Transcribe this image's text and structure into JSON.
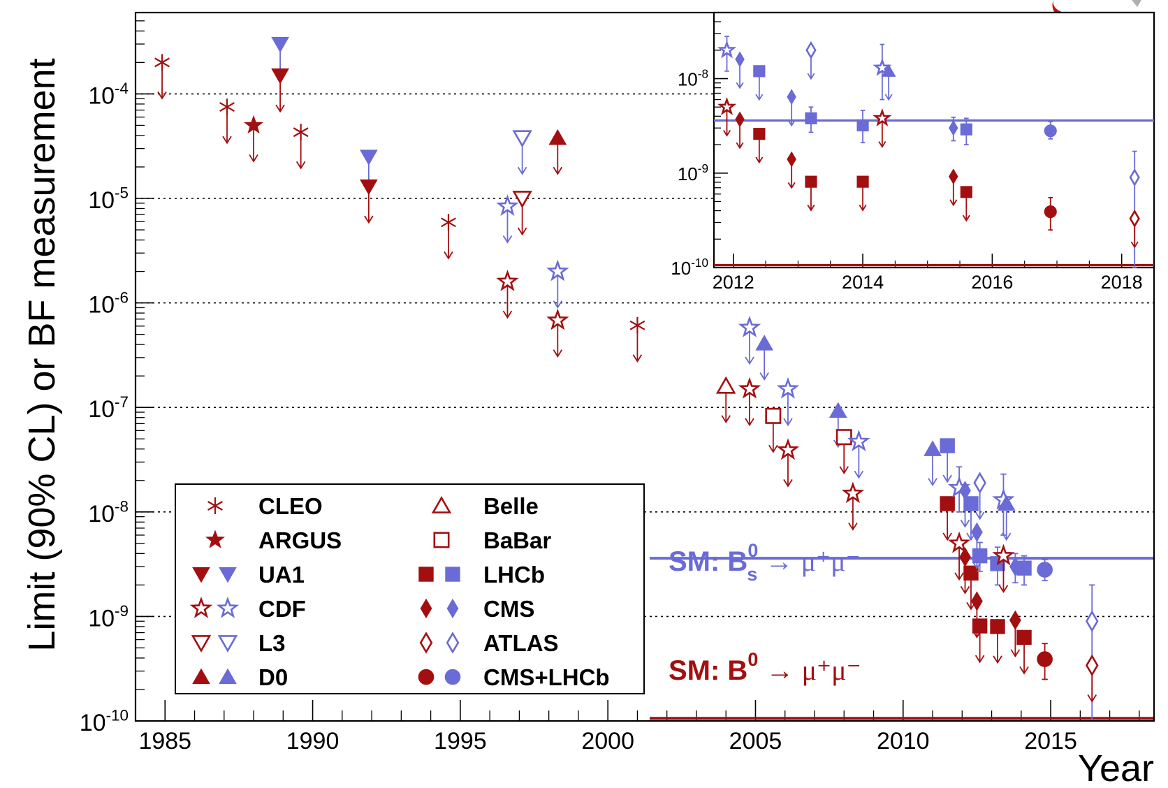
{
  "chart_data": {
    "type": "scatter",
    "ylabel": "Limit (90% CL) or BF measurement",
    "xlabel": "Year",
    "xlim": [
      1984,
      2018.5
    ],
    "ylim": [
      1e-10,
      0.0006
    ],
    "yscale": "log",
    "grid": "dotted horizontal at decades",
    "colors": {
      "B0": "#a30f10",
      "Bs": "#6a6bd6"
    },
    "x_ticks": [
      "1985",
      "1990",
      "1995",
      "2000",
      "2005",
      "2010",
      "2015"
    ],
    "y_ticks": [
      {
        "base": "10",
        "exp": "-10",
        "value": 1e-10
      },
      {
        "base": "10",
        "exp": "-9",
        "value": 1e-09
      },
      {
        "base": "10",
        "exp": "-8",
        "value": 1e-08
      },
      {
        "base": "10",
        "exp": "-7",
        "value": 1e-07
      },
      {
        "base": "10",
        "exp": "-6",
        "value": 1e-06
      },
      {
        "base": "10",
        "exp": "-5",
        "value": 1e-05
      },
      {
        "base": "10",
        "exp": "-4",
        "value": 0.0001
      }
    ],
    "sm_lines": [
      {
        "label_prefix": "SM: B",
        "sup": "0",
        "sub": "s",
        "arrow": "→",
        "decay": "μ⁺μ⁻",
        "value": 3.6e-09,
        "color": "#6a6bd6"
      },
      {
        "label_prefix": "SM: B",
        "sup": "0",
        "sub": "",
        "arrow": "→",
        "decay": "μ⁺μ⁻",
        "value": 1.06e-10,
        "color": "#a30f10"
      }
    ],
    "legend": [
      {
        "label": "CLEO",
        "marker": "asterisk",
        "colors": [
          "B0"
        ]
      },
      {
        "label": "ARGUS",
        "marker": "star-filled",
        "colors": [
          "B0"
        ]
      },
      {
        "label": "UA1",
        "marker": "tri-down-filled",
        "colors": [
          "B0",
          "Bs"
        ]
      },
      {
        "label": "CDF",
        "marker": "star-open",
        "colors": [
          "B0",
          "Bs"
        ]
      },
      {
        "label": "L3",
        "marker": "tri-down-open",
        "colors": [
          "B0",
          "Bs"
        ]
      },
      {
        "label": "D0",
        "marker": "tri-up-filled",
        "colors": [
          "B0",
          "Bs"
        ]
      },
      {
        "label": "Belle",
        "marker": "tri-up-open",
        "colors": [
          "B0"
        ]
      },
      {
        "label": "BaBar",
        "marker": "square-open",
        "colors": [
          "B0"
        ]
      },
      {
        "label": "LHCb",
        "marker": "square-filled",
        "colors": [
          "B0",
          "Bs"
        ]
      },
      {
        "label": "CMS",
        "marker": "diamond-filled",
        "colors": [
          "B0",
          "Bs"
        ]
      },
      {
        "label": "ATLAS",
        "marker": "diamond-open",
        "colors": [
          "B0",
          "Bs"
        ]
      },
      {
        "label": "CMS+LHCb",
        "marker": "circle-filled",
        "colors": [
          "B0",
          "Bs"
        ]
      }
    ],
    "points": [
      {
        "x": 1984.9,
        "y": 0.0002,
        "m": "asterisk",
        "c": "B0",
        "t": "limit"
      },
      {
        "x": 1987.1,
        "y": 7.5e-05,
        "m": "asterisk",
        "c": "B0",
        "t": "limit"
      },
      {
        "x": 1988.0,
        "y": 5e-05,
        "m": "star-filled",
        "c": "B0",
        "t": "limit"
      },
      {
        "x": 1988.9,
        "y": 0.0003,
        "m": "tri-down-filled",
        "c": "Bs",
        "t": "limit"
      },
      {
        "x": 1988.9,
        "y": 0.00015,
        "m": "tri-down-filled",
        "c": "B0",
        "t": "limit"
      },
      {
        "x": 1989.6,
        "y": 4.3e-05,
        "m": "asterisk",
        "c": "B0",
        "t": "limit"
      },
      {
        "x": 1991.9,
        "y": 2.5e-05,
        "m": "tri-down-filled",
        "c": "Bs",
        "t": "limit"
      },
      {
        "x": 1991.9,
        "y": 1.3e-05,
        "m": "tri-down-filled",
        "c": "B0",
        "t": "limit"
      },
      {
        "x": 1994.6,
        "y": 5.9e-06,
        "m": "asterisk",
        "c": "B0",
        "t": "limit"
      },
      {
        "x": 1996.6,
        "y": 8.4e-06,
        "m": "star-open",
        "c": "Bs",
        "t": "limit"
      },
      {
        "x": 1996.6,
        "y": 1.6e-06,
        "m": "star-open",
        "c": "B0",
        "t": "limit"
      },
      {
        "x": 1997.1,
        "y": 3.8e-05,
        "m": "tri-down-open",
        "c": "Bs",
        "t": "limit"
      },
      {
        "x": 1997.1,
        "y": 1e-05,
        "m": "tri-down-open",
        "c": "B0",
        "t": "limit"
      },
      {
        "x": 1998.3,
        "y": 3.8e-05,
        "m": "tri-up-filled",
        "c": "B0",
        "t": "limit"
      },
      {
        "x": 1998.3,
        "y": 2e-06,
        "m": "star-open",
        "c": "Bs",
        "t": "limit"
      },
      {
        "x": 1998.3,
        "y": 6.8e-07,
        "m": "star-open",
        "c": "B0",
        "t": "limit"
      },
      {
        "x": 2001.0,
        "y": 6.1e-07,
        "m": "asterisk",
        "c": "B0",
        "t": "limit"
      },
      {
        "x": 2004.0,
        "y": 1.6e-07,
        "m": "tri-up-open",
        "c": "B0",
        "t": "limit"
      },
      {
        "x": 2004.8,
        "y": 5.8e-07,
        "m": "star-open",
        "c": "Bs",
        "t": "limit"
      },
      {
        "x": 2004.8,
        "y": 1.5e-07,
        "m": "star-open",
        "c": "B0",
        "t": "limit"
      },
      {
        "x": 2005.3,
        "y": 4.1e-07,
        "m": "tri-up-filled",
        "c": "Bs",
        "t": "limit"
      },
      {
        "x": 2005.6,
        "y": 8.3e-08,
        "m": "square-open",
        "c": "B0",
        "t": "limit"
      },
      {
        "x": 2006.1,
        "y": 1.5e-07,
        "m": "star-open",
        "c": "Bs",
        "t": "limit"
      },
      {
        "x": 2006.1,
        "y": 3.9e-08,
        "m": "star-open",
        "c": "B0",
        "t": "limit"
      },
      {
        "x": 2007.8,
        "y": 9.3e-08,
        "m": "tri-up-filled",
        "c": "Bs",
        "t": "limit"
      },
      {
        "x": 2008.0,
        "y": 5.2e-08,
        "m": "square-open",
        "c": "B0",
        "t": "limit"
      },
      {
        "x": 2008.5,
        "y": 4.7e-08,
        "m": "star-open",
        "c": "Bs",
        "t": "limit"
      },
      {
        "x": 2008.3,
        "y": 1.5e-08,
        "m": "star-open",
        "c": "B0",
        "t": "limit"
      },
      {
        "x": 2011.0,
        "y": 4e-08,
        "m": "tri-up-filled",
        "c": "Bs",
        "t": "limit"
      },
      {
        "x": 2011.5,
        "y": 4.3e-08,
        "m": "square-filled",
        "c": "Bs",
        "t": "limit"
      },
      {
        "x": 2011.5,
        "y": 1.2e-08,
        "m": "square-filled",
        "c": "B0",
        "t": "limit"
      },
      {
        "x": 2011.9,
        "y": 1.7e-08,
        "m": "star-open",
        "c": "Bs",
        "t": "meas",
        "eu": 2.7e-08,
        "ed": 1e-08
      },
      {
        "x": 2011.9,
        "y": 5e-09,
        "m": "star-open",
        "c": "B0",
        "t": "limit"
      },
      {
        "x": 2012.1,
        "y": 1.6e-08,
        "m": "diamond-filled",
        "c": "Bs",
        "t": "limit"
      },
      {
        "x": 2012.1,
        "y": 3.7e-09,
        "m": "diamond-filled",
        "c": "B0",
        "t": "limit"
      },
      {
        "x": 2012.3,
        "y": 1.2e-08,
        "m": "square-filled",
        "c": "Bs",
        "t": "limit"
      },
      {
        "x": 2012.3,
        "y": 2.6e-09,
        "m": "square-filled",
        "c": "B0",
        "t": "limit"
      },
      {
        "x": 2012.5,
        "y": 6.4e-09,
        "m": "diamond-filled",
        "c": "Bs",
        "t": "limit"
      },
      {
        "x": 2012.5,
        "y": 1.4e-09,
        "m": "diamond-filled",
        "c": "B0",
        "t": "limit"
      },
      {
        "x": 2012.6,
        "y": 1.9e-08,
        "m": "diamond-open",
        "c": "Bs",
        "t": "limit"
      },
      {
        "x": 2012.6,
        "y": 3.8e-09,
        "m": "square-filled",
        "c": "Bs",
        "t": "meas",
        "eu": 5.1e-09,
        "ed": 2.7e-09
      },
      {
        "x": 2012.6,
        "y": 8.1e-10,
        "m": "square-filled",
        "c": "B0",
        "t": "limit"
      },
      {
        "x": 2013.2,
        "y": 3.2e-09,
        "m": "square-filled",
        "c": "Bs",
        "t": "meas",
        "eu": 4.6e-09,
        "ed": 2e-09
      },
      {
        "x": 2013.2,
        "y": 8e-10,
        "m": "square-filled",
        "c": "B0",
        "t": "limit"
      },
      {
        "x": 2013.4,
        "y": 1.3e-08,
        "m": "star-open",
        "c": "Bs",
        "t": "meas",
        "eu": 2.3e-08,
        "ed": 6e-09
      },
      {
        "x": 2013.5,
        "y": 1.2e-08,
        "m": "tri-up-filled",
        "c": "Bs",
        "t": "limit"
      },
      {
        "x": 2013.4,
        "y": 3.8e-09,
        "m": "star-open",
        "c": "B0",
        "t": "limit"
      },
      {
        "x": 2013.8,
        "y": 3e-09,
        "m": "diamond-filled",
        "c": "Bs",
        "t": "meas",
        "eu": 4e-09,
        "ed": 2.1e-09
      },
      {
        "x": 2013.8,
        "y": 9.2e-10,
        "m": "diamond-filled",
        "c": "B0",
        "t": "limit"
      },
      {
        "x": 2014.1,
        "y": 2.9e-09,
        "m": "square-filled",
        "c": "Bs",
        "t": "meas",
        "eu": 3.8e-09,
        "ed": 2e-09
      },
      {
        "x": 2014.1,
        "y": 6.3e-10,
        "m": "square-filled",
        "c": "B0",
        "t": "limit"
      },
      {
        "x": 2014.8,
        "y": 2.8e-09,
        "m": "circle-filled",
        "c": "Bs",
        "t": "meas",
        "eu": 3.5e-09,
        "ed": 2.2e-09
      },
      {
        "x": 2014.8,
        "y": 3.9e-10,
        "m": "circle-filled",
        "c": "B0",
        "t": "meas",
        "eu": 5.5e-10,
        "ed": 2.5e-10
      },
      {
        "x": 2016.4,
        "y": 9e-10,
        "m": "diamond-open",
        "c": "Bs",
        "t": "meas",
        "eu": 2e-09,
        "ed": 1e-10
      },
      {
        "x": 2016.4,
        "y": 3.4e-10,
        "m": "diamond-open",
        "c": "B0",
        "t": "limit"
      }
    ],
    "inset": {
      "xlim": [
        2011.7,
        2018.5
      ],
      "ylim": [
        1e-10,
        5e-08
      ],
      "x_ticks": [
        "2012",
        "2014",
        "2016",
        "2018"
      ],
      "y_ticks": [
        {
          "base": "10",
          "exp": "-10",
          "value": 1e-10
        },
        {
          "base": "10",
          "exp": "-9",
          "value": 1e-09
        },
        {
          "base": "10",
          "exp": "-8",
          "value": 1e-08
        }
      ],
      "points": [
        {
          "x": 2011.9,
          "y": 2e-08,
          "m": "star-open",
          "c": "Bs",
          "t": "meas",
          "eu": 2.8e-08,
          "ed": 1.2e-08
        },
        {
          "x": 2011.9,
          "y": 5e-09,
          "m": "star-open",
          "c": "B0",
          "t": "limit"
        },
        {
          "x": 2012.1,
          "y": 1.6e-08,
          "m": "diamond-filled",
          "c": "Bs",
          "t": "limit"
        },
        {
          "x": 2012.1,
          "y": 3.7e-09,
          "m": "diamond-filled",
          "c": "B0",
          "t": "limit"
        },
        {
          "x": 2012.4,
          "y": 1.2e-08,
          "m": "square-filled",
          "c": "Bs",
          "t": "limit"
        },
        {
          "x": 2012.4,
          "y": 2.6e-09,
          "m": "square-filled",
          "c": "B0",
          "t": "limit"
        },
        {
          "x": 2012.9,
          "y": 6.4e-09,
          "m": "diamond-filled",
          "c": "Bs",
          "t": "limit"
        },
        {
          "x": 2012.9,
          "y": 1.4e-09,
          "m": "diamond-filled",
          "c": "B0",
          "t": "limit"
        },
        {
          "x": 2013.2,
          "y": 2e-08,
          "m": "diamond-open",
          "c": "Bs",
          "t": "limit"
        },
        {
          "x": 2013.2,
          "y": 3.8e-09,
          "m": "square-filled",
          "c": "Bs",
          "t": "meas",
          "eu": 5e-09,
          "ed": 2.7e-09
        },
        {
          "x": 2013.2,
          "y": 8.1e-10,
          "m": "square-filled",
          "c": "B0",
          "t": "limit"
        },
        {
          "x": 2014.0,
          "y": 3.2e-09,
          "m": "square-filled",
          "c": "Bs",
          "t": "meas",
          "eu": 4.6e-09,
          "ed": 2.1e-09
        },
        {
          "x": 2014.0,
          "y": 8.1e-10,
          "m": "square-filled",
          "c": "B0",
          "t": "limit"
        },
        {
          "x": 2014.3,
          "y": 1.3e-08,
          "m": "star-open",
          "c": "Bs",
          "t": "meas",
          "eu": 2.3e-08,
          "ed": 6e-09
        },
        {
          "x": 2014.4,
          "y": 1.2e-08,
          "m": "tri-up-filled",
          "c": "Bs",
          "t": "limit"
        },
        {
          "x": 2014.3,
          "y": 3.8e-09,
          "m": "star-open",
          "c": "B0",
          "t": "limit"
        },
        {
          "x": 2015.4,
          "y": 3e-09,
          "m": "diamond-filled",
          "c": "Bs",
          "t": "meas",
          "eu": 3.9e-09,
          "ed": 2.2e-09
        },
        {
          "x": 2015.4,
          "y": 9.2e-10,
          "m": "diamond-filled",
          "c": "B0",
          "t": "limit"
        },
        {
          "x": 2015.6,
          "y": 2.9e-09,
          "m": "square-filled",
          "c": "Bs",
          "t": "meas",
          "eu": 3.8e-09,
          "ed": 2e-09
        },
        {
          "x": 2015.6,
          "y": 6.3e-10,
          "m": "square-filled",
          "c": "B0",
          "t": "limit"
        },
        {
          "x": 2016.9,
          "y": 2.8e-09,
          "m": "circle-filled",
          "c": "Bs",
          "t": "meas",
          "eu": 3.5e-09,
          "ed": 2.3e-09
        },
        {
          "x": 2016.9,
          "y": 3.9e-10,
          "m": "circle-filled",
          "c": "B0",
          "t": "meas",
          "eu": 5.5e-10,
          "ed": 2.5e-10
        },
        {
          "x": 2018.2,
          "y": 9e-10,
          "m": "diamond-open",
          "c": "Bs",
          "t": "meas",
          "eu": 1.7e-09,
          "ed": 1e-10
        },
        {
          "x": 2018.2,
          "y": 3.3e-10,
          "m": "diamond-open",
          "c": "B0",
          "t": "limit"
        }
      ]
    }
  }
}
